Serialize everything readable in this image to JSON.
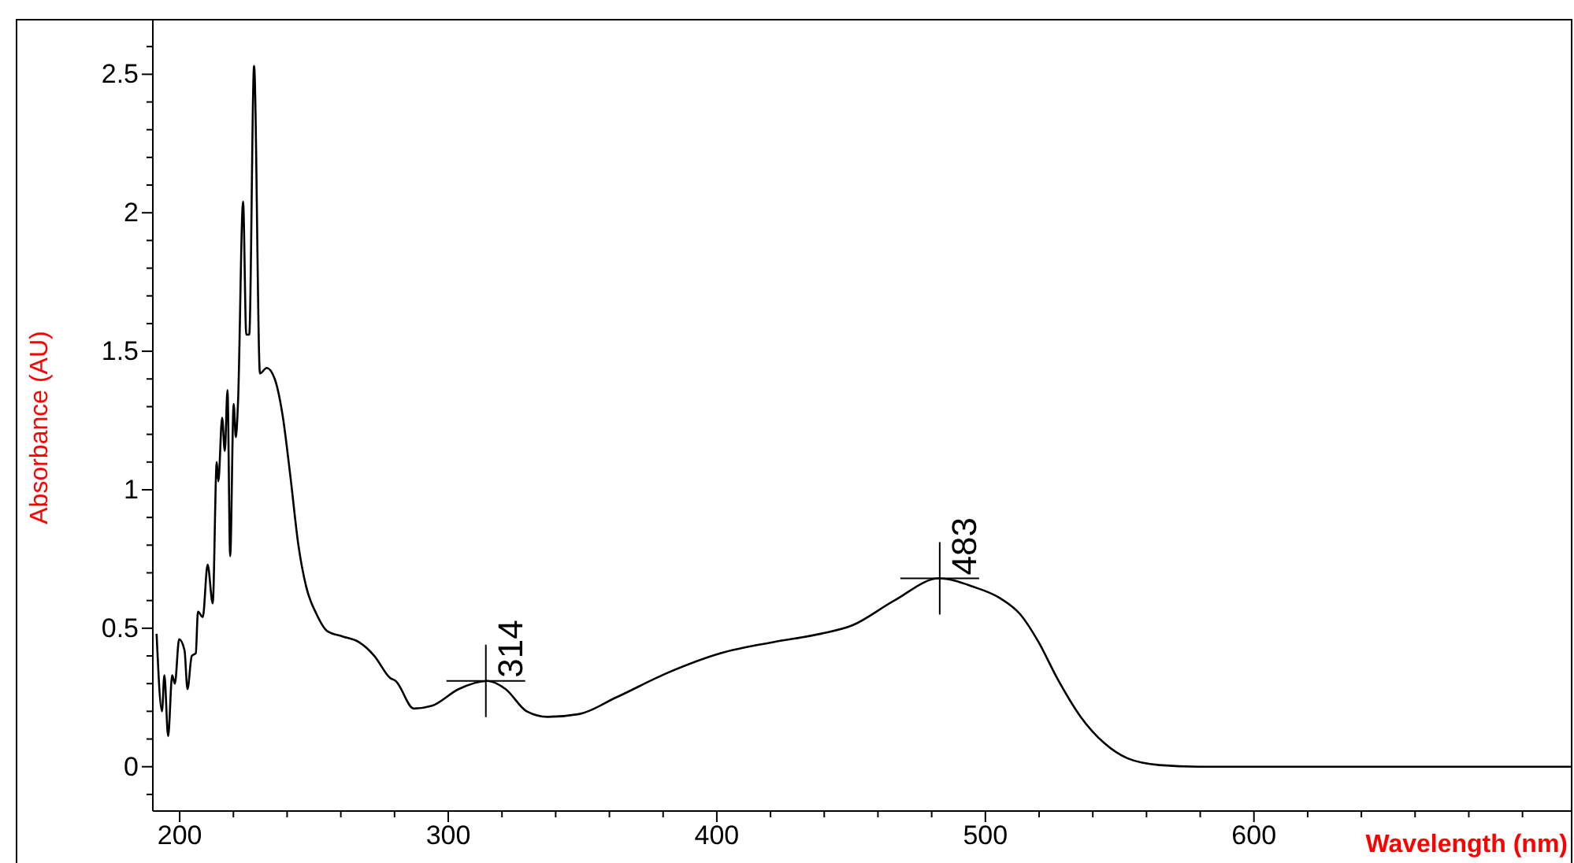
{
  "chart_data": {
    "type": "line",
    "xlabel": "Wavelength (nm)",
    "ylabel": "Absorbance (AU)",
    "xlim": [
      190,
      718
    ],
    "ylim": [
      -0.16,
      2.7
    ],
    "xticks": [
      200,
      {
        "value": 220,
        "label": null
      },
      {
        "value": 240,
        "label": null
      },
      {
        "value": 260,
        "label": null
      },
      {
        "value": 280,
        "label": null
      },
      300,
      {
        "value": 320,
        "label": null
      },
      {
        "value": 340,
        "label": null
      },
      {
        "value": 360,
        "label": null
      },
      {
        "value": 380,
        "label": null
      },
      400,
      {
        "value": 420,
        "label": null
      },
      {
        "value": 440,
        "label": null
      },
      {
        "value": 460,
        "label": null
      },
      {
        "value": 480,
        "label": null
      },
      500,
      {
        "value": 520,
        "label": null
      },
      {
        "value": 540,
        "label": null
      },
      {
        "value": 560,
        "label": null
      },
      {
        "value": 580,
        "label": null
      },
      600,
      {
        "value": 620,
        "label": null
      },
      {
        "value": 640,
        "label": null
      },
      {
        "value": 660,
        "label": null
      },
      {
        "value": 680,
        "label": null
      },
      {
        "value": 700,
        "label": null
      }
    ],
    "yticks": [
      {
        "value": -0.1,
        "label": null
      },
      0,
      {
        "value": 0.1,
        "label": null
      },
      {
        "value": 0.2,
        "label": null
      },
      {
        "value": 0.3,
        "label": null
      },
      {
        "value": 0.4,
        "label": null
      },
      0.5,
      {
        "value": 0.6,
        "label": null
      },
      {
        "value": 0.7,
        "label": null
      },
      {
        "value": 0.8,
        "label": null
      },
      {
        "value": 0.9,
        "label": null
      },
      1,
      {
        "value": 1.1,
        "label": null
      },
      {
        "value": 1.2,
        "label": null
      },
      {
        "value": 1.3,
        "label": null
      },
      {
        "value": 1.4,
        "label": null
      },
      1.5,
      {
        "value": 1.6,
        "label": null
      },
      {
        "value": 1.7,
        "label": null
      },
      {
        "value": 1.8,
        "label": null
      },
      {
        "value": 1.9,
        "label": null
      },
      2,
      {
        "value": 2.1,
        "label": null
      },
      {
        "value": 2.2,
        "label": null
      },
      {
        "value": 2.3,
        "label": null
      },
      {
        "value": 2.4,
        "label": null
      },
      2.5,
      {
        "value": 2.6,
        "label": null
      }
    ],
    "grid": false,
    "marker": "none",
    "line_style": "solid",
    "series": [
      {
        "color": "#000000",
        "x": [
          191.4,
          193.4,
          194.3,
          195.7,
          197.2,
          198.2,
          199.8,
          201.8,
          202.9,
          204.5,
          206,
          206.8,
          208.6,
          210.4,
          212.3,
          213.8,
          214.4,
          215.8,
          216.8,
          217.8,
          218.8,
          220.1,
          220.9,
          221.7,
          223.6,
          224.8,
          225.9,
          227.7,
          229.9,
          232.4,
          235.4,
          238.3,
          241.2,
          244.2,
          247.1,
          251,
          254.9,
          260.8,
          266.7,
          272.5,
          278.4,
          280.4,
          287.2,
          294,
          303.8,
          314.6,
          321.4,
          329.2,
          337,
          348.7,
          362.5,
          381.9,
          401.5,
          421.1,
          438.7,
          450.4,
          466.1,
          482.7,
          495.4,
          505.2,
          513,
          519.8,
          526.7,
          535.5,
          544.3,
          553,
          564.8,
          579.5,
          600,
          650,
          700,
          718
        ],
        "values": [
          0.48,
          0.2,
          0.33,
          0.11,
          0.33,
          0.3,
          0.46,
          0.42,
          0.28,
          0.4,
          0.41,
          0.56,
          0.54,
          0.73,
          0.59,
          1.1,
          1.03,
          1.26,
          1.14,
          1.36,
          0.76,
          1.31,
          1.19,
          1.31,
          2.04,
          1.56,
          1.56,
          2.53,
          1.42,
          1.44,
          1.4,
          1.27,
          1.05,
          0.8,
          0.65,
          0.55,
          0.49,
          0.47,
          0.45,
          0.4,
          0.32,
          0.31,
          0.21,
          0.22,
          0.28,
          0.31,
          0.28,
          0.2,
          0.18,
          0.19,
          0.25,
          0.34,
          0.41,
          0.45,
          0.48,
          0.51,
          0.6,
          0.68,
          0.65,
          0.61,
          0.55,
          0.45,
          0.32,
          0.18,
          0.085,
          0.03,
          0.006,
          0,
          0,
          0,
          0,
          0
        ]
      }
    ],
    "annotations": [
      {
        "text": "314",
        "x": 314,
        "y": 0.31
      },
      {
        "text": "483",
        "x": 483,
        "y": 0.68
      }
    ]
  }
}
